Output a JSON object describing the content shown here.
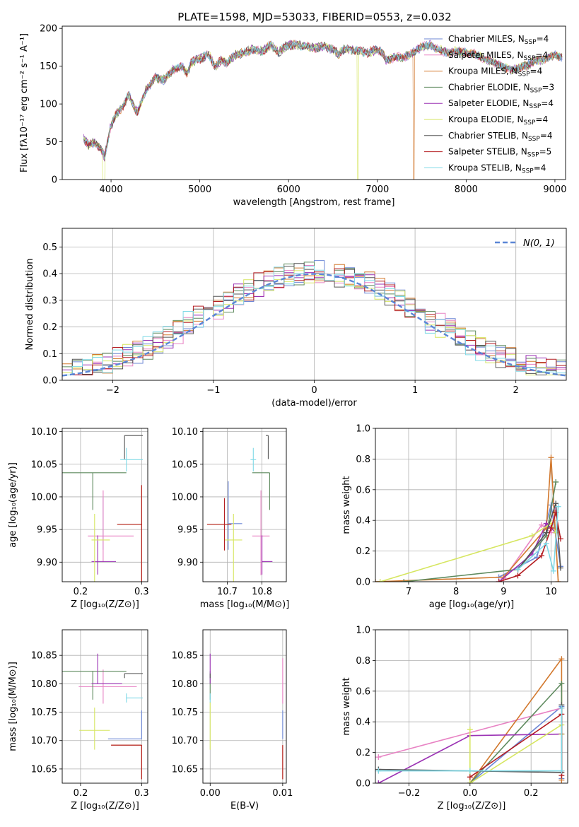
{
  "figure": {
    "title": "PLATE=1598, MJD=53033, FIBERID=0553, z=0.032"
  },
  "colors": {
    "series": [
      "#6c87d6",
      "#e883c4",
      "#d2782d",
      "#5e8a5e",
      "#9b32b4",
      "#d6e660",
      "#555555",
      "#b41e23",
      "#7fd9e6"
    ],
    "normal": "#5b86d6",
    "grid": "#b0b0b0"
  },
  "chart_data": [
    {
      "id": "spectrum",
      "type": "line",
      "xlabel": "wavelength [Angstrom, rest frame]",
      "ylabel": "Flux [fλ10⁻¹⁷ erg cm⁻² s⁻¹ A⁻¹]",
      "xlim": [
        3450,
        9120
      ],
      "ylim": [
        0,
        203
      ],
      "xticks": [
        4000,
        5000,
        6000,
        7000,
        8000,
        9000
      ],
      "yticks": [
        0,
        50,
        100,
        150,
        200
      ],
      "grid": false,
      "legend_position": "right",
      "series": [
        {
          "name": "Chabrier MILES, N",
          "nssp": "4",
          "x": [
            3690,
            3900
          ],
          "cut": null
        },
        {
          "name": "Salpeter MILES, N",
          "nssp": "4",
          "cut": null
        },
        {
          "name": "Kroupa MILES, N",
          "nssp": "4",
          "cut": 7410
        },
        {
          "name": "Chabrier ELODIE, N",
          "nssp": "3",
          "cut": null
        },
        {
          "name": "Salpeter ELODIE, N",
          "nssp": "4",
          "cut": null
        },
        {
          "name": "Kroupa ELODIE, N",
          "nssp": "4",
          "cut": 6780
        },
        {
          "name": "Chabrier STELIB, N",
          "nssp": "4",
          "cut": null
        },
        {
          "name": "Salpeter STELIB, N",
          "nssp": "5",
          "cut": null
        },
        {
          "name": "Kroupa STELIB, N",
          "nssp": "4",
          "cut": null
        }
      ],
      "continuum": {
        "x": [
          3690,
          3750,
          3820,
          3880,
          3930,
          3990,
          4050,
          4120,
          4200,
          4280,
          4300,
          4340,
          4400,
          4500,
          4600,
          4700,
          4800,
          4860,
          4900,
          5000,
          5100,
          5175,
          5250,
          5300,
          5400,
          5500,
          5600,
          5700,
          5800,
          5890,
          5950,
          6000,
          6100,
          6200,
          6300,
          6400,
          6500,
          6563,
          6600,
          6700,
          6800,
          6900,
          7000,
          7050,
          7100,
          7200,
          7300,
          7400,
          7500,
          7600,
          7700,
          7800,
          7900,
          8000,
          8100,
          8200,
          8300,
          8400,
          8500,
          8600,
          8700,
          8800,
          8900,
          9000,
          9080
        ],
        "y": [
          55,
          45,
          50,
          42,
          30,
          68,
          85,
          95,
          112,
          92,
          90,
          102,
          120,
          135,
          132,
          145,
          150,
          140,
          155,
          160,
          165,
          150,
          158,
          154,
          165,
          168,
          172,
          170,
          178,
          168,
          175,
          178,
          178,
          176,
          174,
          176,
          172,
          166,
          172,
          172,
          170,
          168,
          172,
          168,
          158,
          162,
          162,
          168,
          176,
          178,
          172,
          168,
          170,
          168,
          166,
          160,
          156,
          150,
          145,
          148,
          152,
          158,
          160,
          165,
          162
        ]
      }
    },
    {
      "id": "residuals",
      "type": "area",
      "xlabel": "(data-model)/error",
      "ylabel": "Normed distribution",
      "xlim": [
        -2.5,
        2.5
      ],
      "ylim": [
        0,
        0.57
      ],
      "xticks": [
        -2,
        -1,
        0,
        1,
        2
      ],
      "yticks": [
        0.0,
        0.1,
        0.2,
        0.3,
        0.4,
        0.5
      ],
      "grid": true,
      "legend": "N(0, 1)",
      "legend_position": "top-right",
      "bin_width": 0.1
    },
    {
      "id": "age-vs-Z",
      "type": "scatter",
      "xlabel": "Z [log₁₀(Z/Z⊙)]",
      "ylabel": "age  [log₁₀(age/yr)]",
      "xlim": [
        0.17,
        0.31
      ],
      "ylim": [
        9.87,
        10.105
      ],
      "xticks": [
        0.2,
        0.3
      ],
      "yticks": [
        9.9,
        9.95,
        10.0,
        10.05,
        10.1
      ],
      "grid": true,
      "points": [
        {
          "x": 0.237,
          "y": 9.959,
          "xerr": [
            0.0,
            0.0
          ],
          "yerr": [
            0.04,
            0.04
          ]
        },
        {
          "x": 0.237,
          "y": 9.94,
          "xerr": [
            0.025,
            0.05
          ],
          "yerr": [
            0.04,
            0.07
          ]
        },
        {
          "x": 0.3,
          "y": 9.958,
          "xerr": [
            0.04,
            0.0
          ],
          "yerr": [
            0.16,
            0.06
          ]
        },
        {
          "x": 0.22,
          "y": 10.037,
          "xerr": [
            0.05,
            0.055
          ],
          "yerr": [
            0.057,
            0.0
          ]
        },
        {
          "x": 0.228,
          "y": 9.901,
          "xerr": [
            0.01,
            0.03
          ],
          "yerr": [
            0.02,
            0.04
          ]
        },
        {
          "x": 0.223,
          "y": 9.934,
          "xerr": [
            0.005,
            0.025
          ],
          "yerr": [
            0.07,
            0.04
          ]
        },
        {
          "x": 0.272,
          "y": 10.094,
          "xerr": [
            0.0,
            0.03
          ],
          "yerr": [
            0.036,
            0.0
          ]
        },
        {
          "x": 0.3,
          "y": 9.958,
          "xerr": [
            0.04,
            0.0
          ],
          "yerr": [
            0.16,
            0.06
          ]
        },
        {
          "x": 0.275,
          "y": 10.057,
          "xerr": [
            0.01,
            0.027
          ],
          "yerr": [
            0.018,
            0.018
          ]
        }
      ]
    },
    {
      "id": "age-vs-mass",
      "type": "scatter",
      "xlabel": "mass [log₁₀(M/M⊙)]",
      "ylabel": "",
      "xlim": [
        10.63,
        10.87
      ],
      "ylim": [
        9.87,
        10.105
      ],
      "xticks": [
        10.7,
        10.8
      ],
      "yticks": [
        9.9,
        9.95,
        10.0,
        10.05,
        10.1
      ],
      "grid": true,
      "points": [
        {
          "x": 10.703,
          "y": 9.959,
          "xerr": [
            0.0,
            0.04
          ],
          "yerr": [
            0.04,
            0.065
          ]
        },
        {
          "x": 10.797,
          "y": 9.94,
          "xerr": [
            0.025,
            0.025
          ],
          "yerr": [
            0.06,
            0.07
          ]
        },
        {
          "x": 10.692,
          "y": 9.958,
          "xerr": [
            0.05,
            0.02
          ],
          "yerr": [
            0.04,
            0.04
          ]
        },
        {
          "x": 10.822,
          "y": 10.037,
          "xerr": [
            0.05,
            0.0
          ],
          "yerr": [
            0.057,
            0.0
          ]
        },
        {
          "x": 10.8,
          "y": 9.901,
          "xerr": [
            0.0,
            0.03
          ],
          "yerr": [
            0.02,
            0.04
          ]
        },
        {
          "x": 10.718,
          "y": 9.934,
          "xerr": [
            0.025,
            0.025
          ],
          "yerr": [
            0.07,
            0.04
          ]
        },
        {
          "x": 10.818,
          "y": 10.094,
          "xerr": [
            0.007,
            0.0
          ],
          "yerr": [
            0.036,
            0.0
          ]
        },
        {
          "x": 10.692,
          "y": 9.958,
          "xerr": [
            0.05,
            0.02
          ],
          "yerr": [
            0.04,
            0.04
          ]
        },
        {
          "x": 10.775,
          "y": 10.057,
          "xerr": [
            0.008,
            0.008
          ],
          "yerr": [
            0.018,
            0.018
          ]
        }
      ]
    },
    {
      "id": "weight-vs-age",
      "type": "line",
      "xlabel": "age  [log₁₀(age/yr)]",
      "ylabel": "mass weight",
      "xlim": [
        6.3,
        10.35
      ],
      "ylim": [
        0,
        1
      ],
      "xticks": [
        7,
        8,
        9,
        10
      ],
      "yticks": [
        0.0,
        0.2,
        0.4,
        0.6,
        0.8,
        1.0
      ],
      "grid": true,
      "series": [
        {
          "x": [
            8.9,
            9.7,
            10.0,
            10.2
          ],
          "y": [
            0.03,
            0.16,
            0.5,
            0.1
          ]
        },
        {
          "x": [
            9.0,
            9.8,
            10.0,
            10.1
          ],
          "y": [
            0.02,
            0.37,
            0.32,
            0.49
          ]
        },
        {
          "x": [
            6.3,
            9.0,
            9.9,
            10.0,
            10.15
          ],
          "y": [
            0.0,
            0.03,
            0.35,
            0.81,
            0.0
          ]
        },
        {
          "x": [
            6.9,
            9.3,
            9.9,
            10.1
          ],
          "y": [
            0.0,
            0.08,
            0.3,
            0.65
          ]
        },
        {
          "x": [
            8.9,
            9.6,
            9.9,
            10.1
          ],
          "y": [
            0.0,
            0.18,
            0.38,
            0.32
          ]
        },
        {
          "x": [
            6.4,
            9.6,
            10.0,
            10.1
          ],
          "y": [
            0.0,
            0.3,
            0.38,
            0.32
          ]
        },
        {
          "x": [
            9.3,
            9.9,
            10.1,
            10.2
          ],
          "y": [
            0.08,
            0.32,
            0.51,
            0.09
          ]
        },
        {
          "x": [
            8.9,
            9.3,
            9.8,
            10.0,
            10.1,
            10.2
          ],
          "y": [
            0.0,
            0.04,
            0.17,
            0.35,
            0.45,
            0.28
          ]
        },
        {
          "x": [
            9.3,
            9.9,
            10.05,
            10.15
          ],
          "y": [
            0.08,
            0.25,
            0.07,
            0.49
          ]
        }
      ]
    },
    {
      "id": "mass-vs-Z",
      "type": "scatter",
      "xlabel": "Z [log₁₀(Z/Z⊙)]",
      "ylabel": "mass [log₁₀(M/M⊙)]",
      "xlim": [
        0.17,
        0.31
      ],
      "ylim": [
        10.625,
        10.895
      ],
      "xticks": [
        0.2,
        0.3
      ],
      "yticks": [
        10.65,
        10.7,
        10.75,
        10.8,
        10.85
      ],
      "grid": true,
      "points": [
        {
          "x": 0.3,
          "y": 10.703,
          "xerr": [
            0.055,
            0.0
          ],
          "yerr": [
            0.0,
            0.05
          ]
        },
        {
          "x": 0.237,
          "y": 10.795,
          "xerr": [
            0.04,
            0.055
          ],
          "yerr": [
            0.03,
            0.03
          ]
        },
        {
          "x": 0.3,
          "y": 10.692,
          "xerr": [
            0.05,
            0.0
          ],
          "yerr": [
            0.06,
            0.0
          ]
        },
        {
          "x": 0.22,
          "y": 10.822,
          "xerr": [
            0.05,
            0.055
          ],
          "yerr": [
            0.05,
            0.0
          ]
        },
        {
          "x": 0.228,
          "y": 10.8,
          "xerr": [
            0.01,
            0.04
          ],
          "yerr": [
            0.0,
            0.053
          ]
        },
        {
          "x": 0.223,
          "y": 10.718,
          "xerr": [
            0.025,
            0.025
          ],
          "yerr": [
            0.034,
            0.04
          ]
        },
        {
          "x": 0.272,
          "y": 10.818,
          "xerr": [
            0.0,
            0.03
          ],
          "yerr": [
            0.008,
            0.0
          ]
        },
        {
          "x": 0.3,
          "y": 10.692,
          "xerr": [
            0.05,
            0.0
          ],
          "yerr": [
            0.06,
            0.0
          ]
        },
        {
          "x": 0.275,
          "y": 10.775,
          "xerr": [
            0.0,
            0.027
          ],
          "yerr": [
            0.008,
            0.008
          ]
        }
      ]
    },
    {
      "id": "mass-vs-ebv",
      "type": "scatter",
      "xlabel": "E(B-V)",
      "ylabel": "",
      "xlim": [
        -0.001,
        0.0105
      ],
      "ylim": [
        10.625,
        10.895
      ],
      "xticks": [
        0.0,
        0.01
      ],
      "yticks": [
        10.65,
        10.7,
        10.75,
        10.8,
        10.85
      ],
      "grid": true,
      "points": [
        {
          "x": 0.01,
          "y": 10.703,
          "xerr": [
            0,
            0
          ],
          "yerr": [
            0.0,
            0.05
          ]
        },
        {
          "x": 0.01,
          "y": 10.795,
          "xerr": [
            0,
            0
          ],
          "yerr": [
            0.03,
            0.05
          ]
        },
        {
          "x": 0.01,
          "y": 10.692,
          "xerr": [
            0,
            0
          ],
          "yerr": [
            0.06,
            0.0
          ]
        },
        {
          "x": 0.0,
          "y": 10.822,
          "xerr": [
            0,
            0
          ],
          "yerr": [
            0.05,
            0.0
          ]
        },
        {
          "x": 0.0,
          "y": 10.8,
          "xerr": [
            0,
            0
          ],
          "yerr": [
            0.0,
            0.053
          ]
        },
        {
          "x": 0.0,
          "y": 10.718,
          "xerr": [
            0,
            0
          ],
          "yerr": [
            0.034,
            0.05
          ]
        },
        {
          "x": 0.0,
          "y": 10.818,
          "xerr": [
            0,
            0
          ],
          "yerr": [
            0.008,
            0.0
          ]
        },
        {
          "x": 0.01,
          "y": 10.692,
          "xerr": [
            0,
            0
          ],
          "yerr": [
            0.06,
            0.0
          ]
        },
        {
          "x": 0.0,
          "y": 10.775,
          "xerr": [
            0,
            0
          ],
          "yerr": [
            0.008,
            0.008
          ]
        }
      ]
    },
    {
      "id": "weight-vs-Z",
      "type": "line",
      "xlabel": "Z [log₁₀(Z/Z⊙)]",
      "ylabel": "mass weight",
      "xlim": [
        -0.31,
        0.32
      ],
      "ylim": [
        0,
        1
      ],
      "xticks": [
        -0.2,
        0.0,
        0.2
      ],
      "yticks": [
        0.0,
        0.2,
        0.4,
        0.6,
        0.8,
        1.0
      ],
      "grid": true,
      "series": [
        {
          "x": [
            0.0,
            0.3,
            0.3
          ],
          "y": [
            0.0,
            0.5,
            0.03
          ]
        },
        {
          "x": [
            -0.3,
            0.3,
            0.3
          ],
          "y": [
            0.17,
            0.49,
            0.32
          ]
        },
        {
          "x": [
            0.0,
            0.3,
            0.3
          ],
          "y": [
            0.0,
            0.81,
            0.02
          ]
        },
        {
          "x": [
            0.0,
            0.3,
            0.3
          ],
          "y": [
            0.0,
            0.65,
            0.08
          ]
        },
        {
          "x": [
            -0.3,
            0.0,
            0.3,
            0.3
          ],
          "y": [
            0.0,
            0.31,
            0.32,
            0.32
          ]
        },
        {
          "x": [
            0.0,
            0.0,
            0.3,
            0.3
          ],
          "y": [
            0.35,
            0.0,
            0.38,
            0.32
          ]
        },
        {
          "x": [
            -0.3,
            0.3,
            0.3
          ],
          "y": [
            0.09,
            0.07,
            0.51
          ]
        },
        {
          "x": [
            0.0,
            0.3,
            0.3
          ],
          "y": [
            0.04,
            0.45,
            0.05
          ]
        },
        {
          "x": [
            -0.3,
            0.0,
            0.3,
            0.3
          ],
          "y": [
            0.08,
            0.08,
            0.08,
            0.49
          ]
        }
      ]
    }
  ]
}
